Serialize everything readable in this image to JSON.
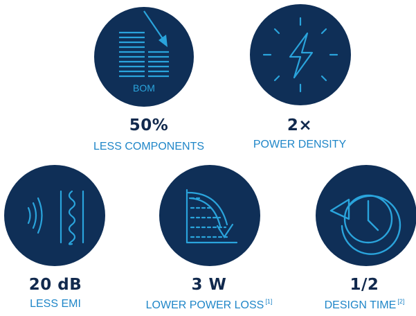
{
  "colors": {
    "circle": "#0f2f57",
    "icon": "#2aa4dc",
    "value_text": "#11294d",
    "label_text": "#1f86c8"
  },
  "stats": [
    {
      "icon": "bom-document-arrow-icon",
      "icon_text": "BOM",
      "value": "50%",
      "label": "LESS COMPONENTS",
      "footnote": ""
    },
    {
      "icon": "lightning-bolt-icon",
      "value": "2×",
      "label": "POWER DENSITY",
      "footnote": ""
    },
    {
      "icon": "emi-wave-shield-icon",
      "value": "20 dB",
      "label": "LESS EMI",
      "footnote": ""
    },
    {
      "icon": "power-loss-curve-icon",
      "value": "3 W",
      "label": "LOWER POWER LOSS",
      "footnote": "[1]"
    },
    {
      "icon": "clock-rewind-icon",
      "value": "1/2",
      "label": "DESIGN TIME",
      "footnote": "[2]"
    }
  ]
}
